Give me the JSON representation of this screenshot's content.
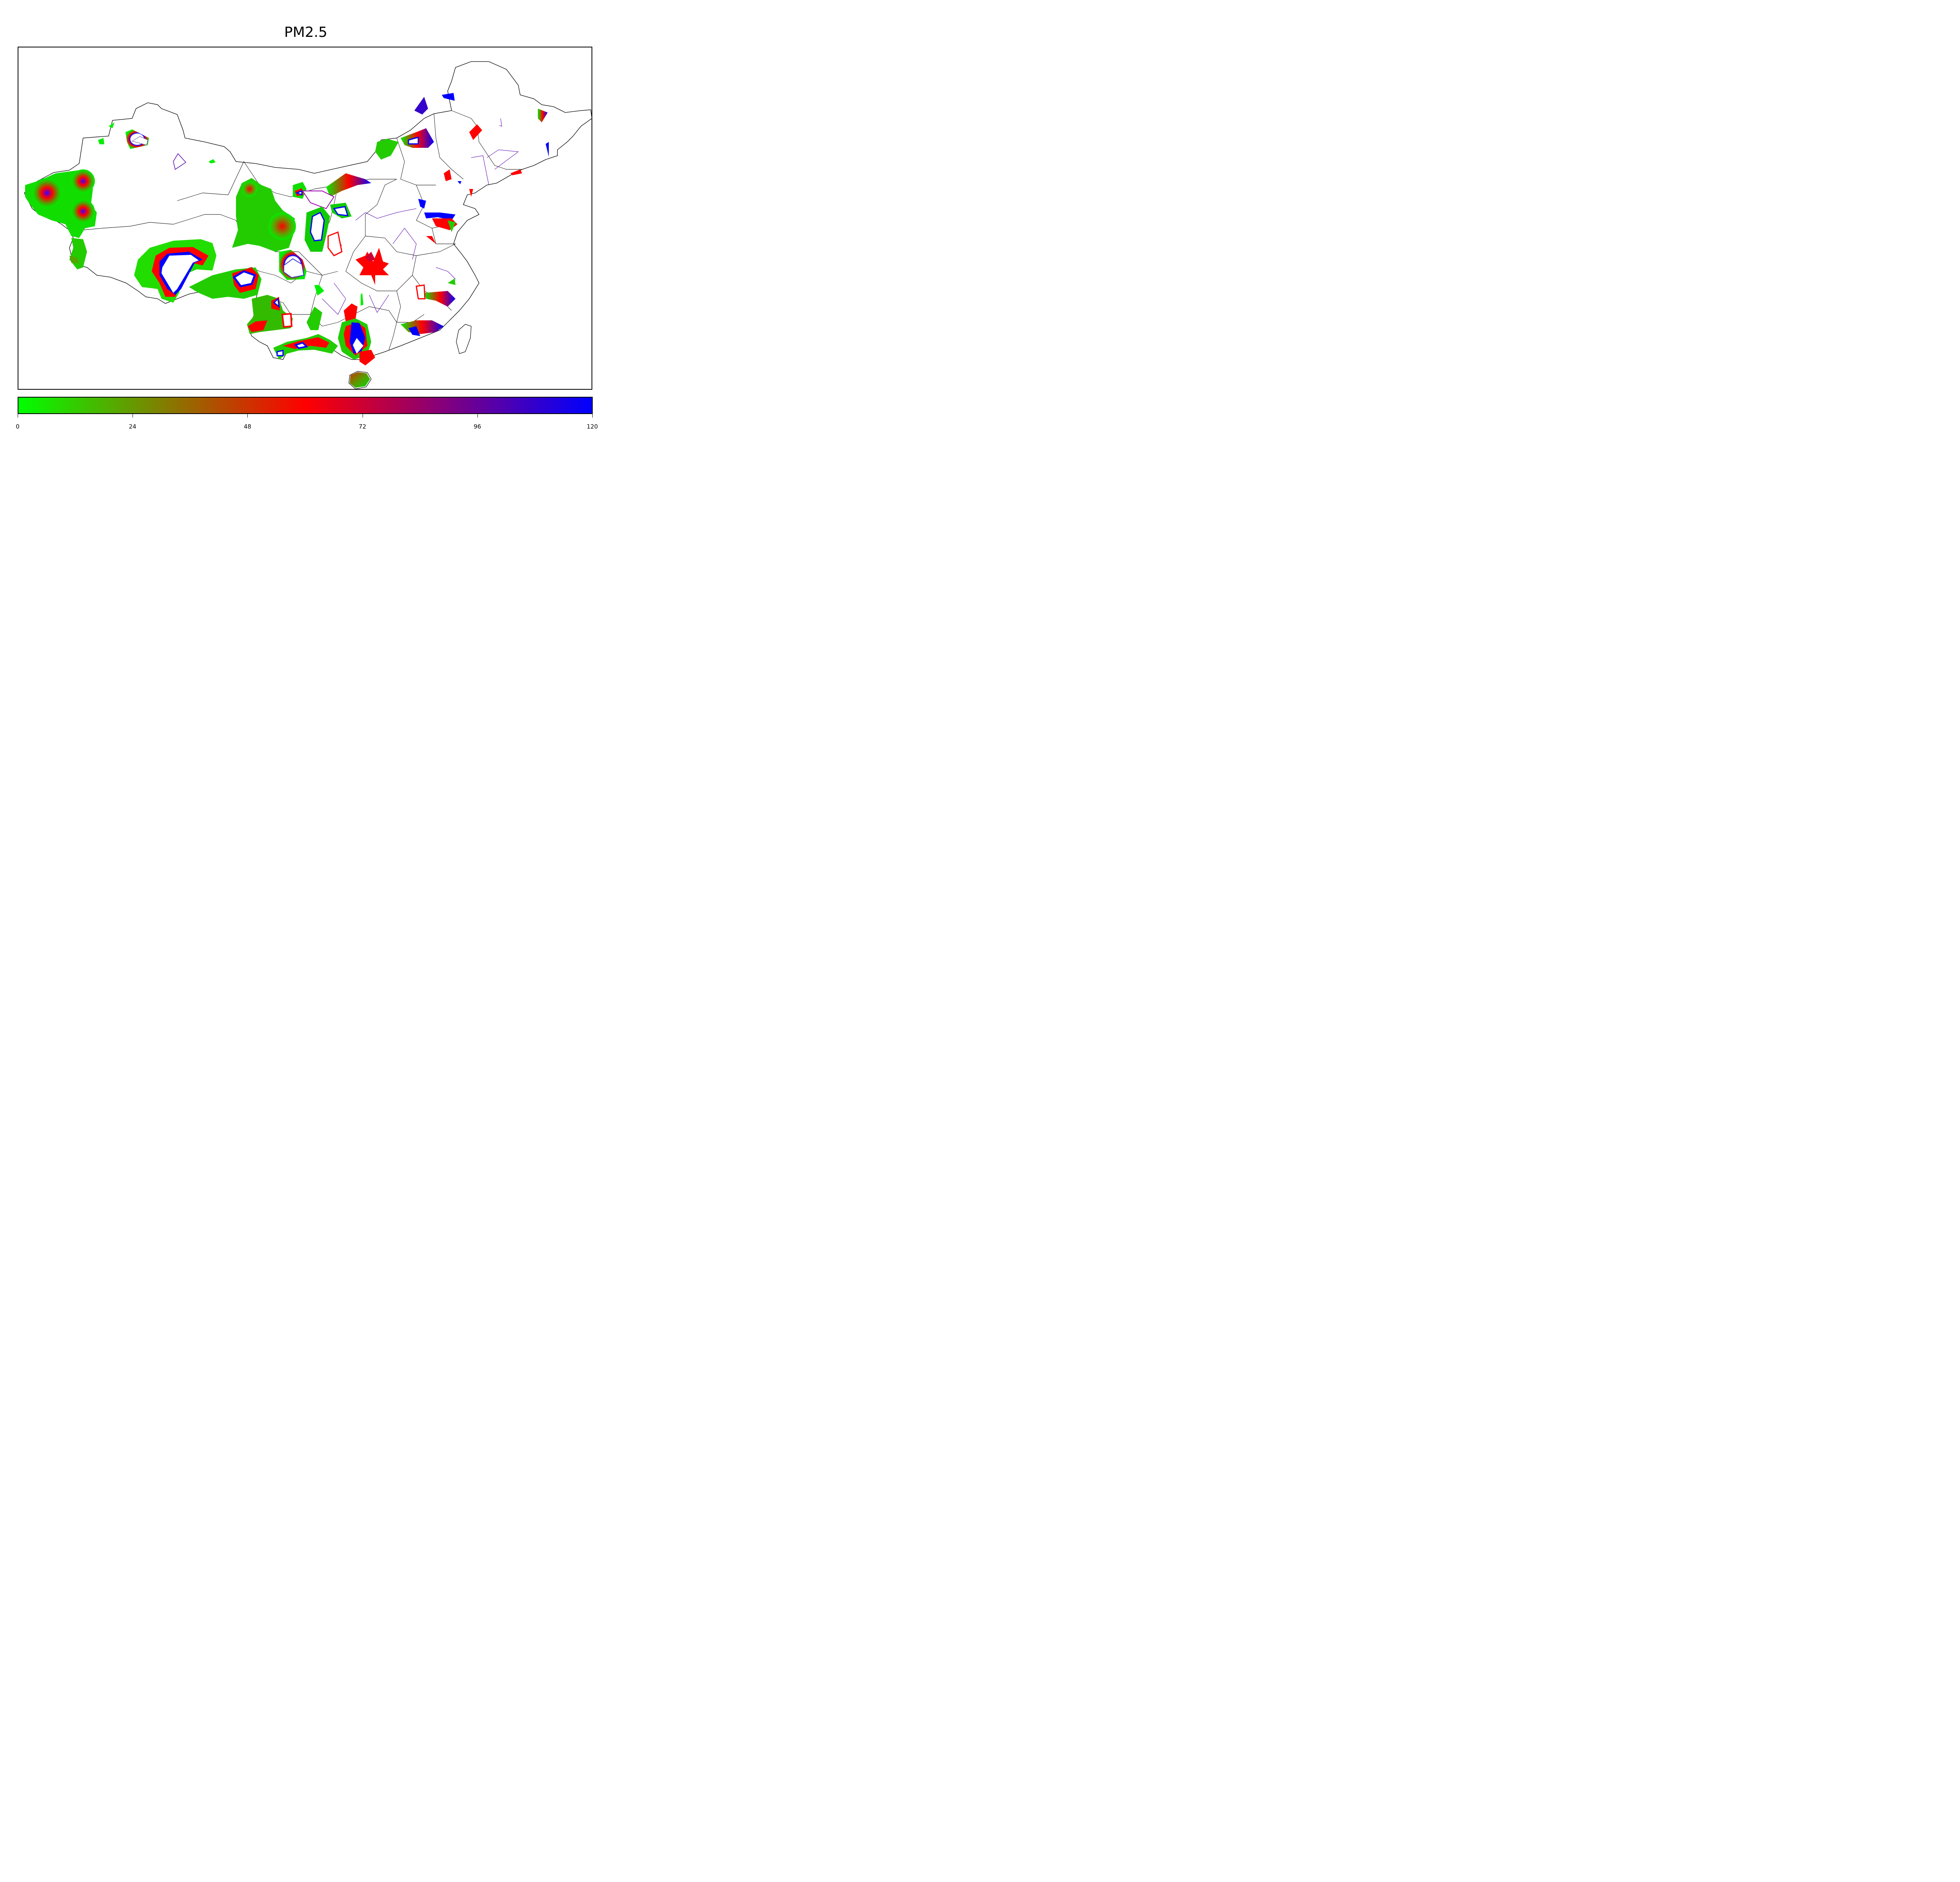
{
  "title": "PM2.5",
  "colorbar": {
    "min": 0,
    "max": 120,
    "ticks": [
      "0",
      "24",
      "48",
      "72",
      "96",
      "120"
    ],
    "colors": [
      "#00ff00",
      "#ff0000",
      "#0000ff"
    ]
  }
}
